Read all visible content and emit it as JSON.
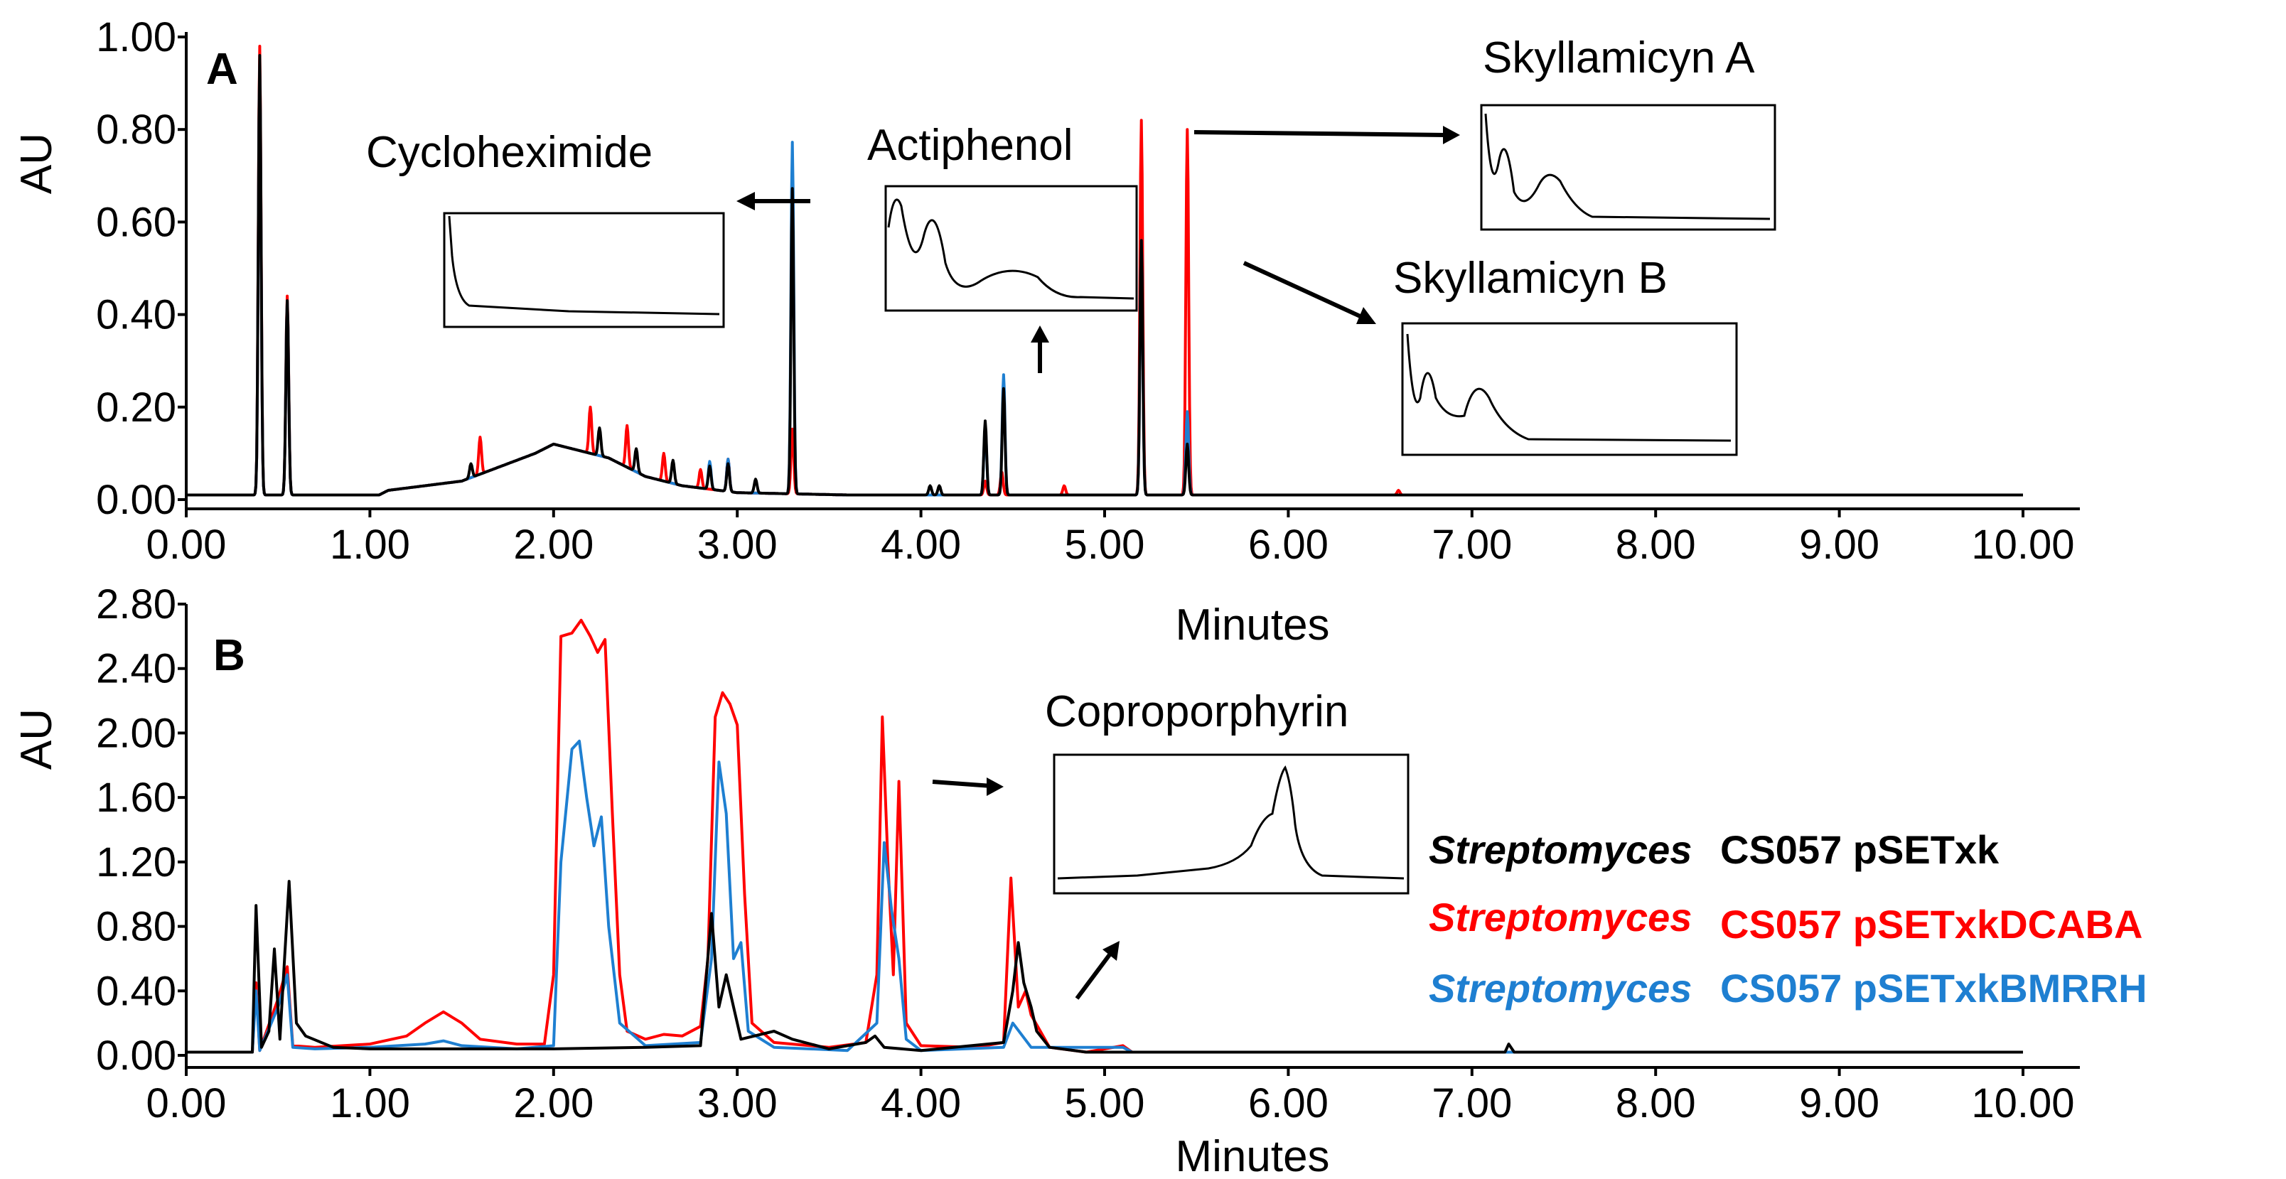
{
  "chart_data": [
    {
      "panel_label": "A",
      "type": "line",
      "xlabel": "Minutes",
      "ylabel": "AU",
      "xlim": [
        0,
        10
      ],
      "ylim": [
        0,
        1.0
      ],
      "x_ticks": [
        "0.00",
        "1.00",
        "2.00",
        "3.00",
        "4.00",
        "5.00",
        "6.00",
        "7.00",
        "8.00",
        "9.00",
        "10.00"
      ],
      "y_ticks": [
        "0.00",
        "0.20",
        "0.40",
        "0.60",
        "0.80",
        "1.00"
      ],
      "series": [
        {
          "name": "Streptomyces CS057 pSETxkDCABA",
          "color": "#ff0000",
          "baseline": [
            [
              0.0,
              0.01
            ],
            [
              1.05,
              0.01
            ],
            [
              1.1,
              0.02
            ],
            [
              1.5,
              0.04
            ],
            [
              1.7,
              0.07
            ],
            [
              1.9,
              0.1
            ],
            [
              2.0,
              0.12
            ],
            [
              2.1,
              0.11
            ],
            [
              2.3,
              0.09
            ],
            [
              2.5,
              0.05
            ],
            [
              2.7,
              0.03
            ],
            [
              3.0,
              0.015
            ],
            [
              3.6,
              0.01
            ],
            [
              10.0,
              0.01
            ]
          ],
          "peaks": [
            [
              0.4,
              0.97
            ],
            [
              0.55,
              0.43
            ],
            [
              1.6,
              0.08
            ],
            [
              2.2,
              0.1
            ],
            [
              2.4,
              0.09
            ],
            [
              2.6,
              0.06
            ],
            [
              2.8,
              0.04
            ],
            [
              2.95,
              0.07
            ],
            [
              3.3,
              0.14
            ],
            [
              4.35,
              0.03
            ],
            [
              4.44,
              0.05
            ],
            [
              4.78,
              0.02
            ],
            [
              5.2,
              0.81
            ],
            [
              5.45,
              0.79
            ],
            [
              6.6,
              0.01
            ]
          ]
        },
        {
          "name": "Streptomyces CS057 pSETxkBMRRH",
          "color": "#1e7fd1",
          "baseline": [
            [
              0.0,
              0.01
            ],
            [
              1.05,
              0.01
            ],
            [
              1.1,
              0.02
            ],
            [
              1.5,
              0.04
            ],
            [
              1.7,
              0.07
            ],
            [
              1.9,
              0.1
            ],
            [
              2.0,
              0.12
            ],
            [
              2.1,
              0.11
            ],
            [
              2.3,
              0.09
            ],
            [
              2.5,
              0.05
            ],
            [
              2.7,
              0.03
            ],
            [
              3.0,
              0.015
            ],
            [
              3.6,
              0.01
            ],
            [
              10.0,
              0.01
            ]
          ],
          "peaks": [
            [
              0.4,
              0.93
            ],
            [
              0.55,
              0.42
            ],
            [
              2.85,
              0.06
            ],
            [
              2.95,
              0.07
            ],
            [
              3.3,
              0.76
            ],
            [
              4.35,
              0.15
            ],
            [
              4.45,
              0.26
            ],
            [
              5.2,
              0.55
            ],
            [
              5.45,
              0.18
            ]
          ]
        },
        {
          "name": "Streptomyces CS057 pSETxk",
          "color": "#000000",
          "baseline": [
            [
              0.0,
              0.01
            ],
            [
              1.05,
              0.01
            ],
            [
              1.1,
              0.02
            ],
            [
              1.5,
              0.04
            ],
            [
              1.7,
              0.07
            ],
            [
              1.9,
              0.1
            ],
            [
              2.0,
              0.12
            ],
            [
              2.1,
              0.11
            ],
            [
              2.3,
              0.09
            ],
            [
              2.5,
              0.05
            ],
            [
              2.7,
              0.03
            ],
            [
              3.0,
              0.015
            ],
            [
              3.6,
              0.01
            ],
            [
              10.0,
              0.01
            ]
          ],
          "peaks": [
            [
              0.4,
              0.95
            ],
            [
              0.55,
              0.42
            ],
            [
              1.55,
              0.03
            ],
            [
              2.25,
              0.06
            ],
            [
              2.45,
              0.05
            ],
            [
              2.65,
              0.05
            ],
            [
              2.85,
              0.05
            ],
            [
              2.95,
              0.06
            ],
            [
              3.1,
              0.03
            ],
            [
              3.3,
              0.66
            ],
            [
              4.05,
              0.02
            ],
            [
              4.1,
              0.02
            ],
            [
              4.35,
              0.16
            ],
            [
              4.45,
              0.23
            ],
            [
              5.2,
              0.55
            ],
            [
              5.45,
              0.11
            ]
          ]
        }
      ],
      "annotations": [
        "Cycloheximide",
        "Actiphenol",
        "Skyllamicyn A",
        "Skyllamicyn B"
      ]
    },
    {
      "panel_label": "B",
      "type": "line",
      "xlabel": "Minutes",
      "ylabel": "AU",
      "xlim": [
        0,
        10
      ],
      "ylim": [
        0,
        2.8
      ],
      "x_ticks": [
        "0.00",
        "1.00",
        "2.00",
        "3.00",
        "4.00",
        "5.00",
        "6.00",
        "7.00",
        "8.00",
        "9.00",
        "10.00"
      ],
      "y_ticks": [
        "0.00",
        "0.40",
        "0.80",
        "1.20",
        "1.60",
        "2.00",
        "2.40",
        "2.80"
      ],
      "series": [
        {
          "name": "Streptomyces CS057 pSETxkDCABA",
          "color": "#ff0000",
          "points": [
            [
              0,
              0.02
            ],
            [
              0.36,
              0.02
            ],
            [
              0.38,
              0.45
            ],
            [
              0.4,
              0.03
            ],
            [
              0.5,
              0.35
            ],
            [
              0.55,
              0.55
            ],
            [
              0.58,
              0.06
            ],
            [
              0.7,
              0.05
            ],
            [
              1.0,
              0.07
            ],
            [
              1.2,
              0.12
            ],
            [
              1.3,
              0.2
            ],
            [
              1.4,
              0.27
            ],
            [
              1.5,
              0.2
            ],
            [
              1.6,
              0.1
            ],
            [
              1.8,
              0.07
            ],
            [
              1.95,
              0.07
            ],
            [
              2.0,
              0.5
            ],
            [
              2.04,
              2.6
            ],
            [
              2.1,
              2.62
            ],
            [
              2.15,
              2.7
            ],
            [
              2.2,
              2.6
            ],
            [
              2.24,
              2.5
            ],
            [
              2.28,
              2.58
            ],
            [
              2.32,
              1.5
            ],
            [
              2.36,
              0.5
            ],
            [
              2.4,
              0.15
            ],
            [
              2.5,
              0.1
            ],
            [
              2.6,
              0.13
            ],
            [
              2.7,
              0.12
            ],
            [
              2.8,
              0.18
            ],
            [
              2.84,
              0.6
            ],
            [
              2.88,
              2.1
            ],
            [
              2.92,
              2.25
            ],
            [
              2.96,
              2.18
            ],
            [
              3.0,
              2.05
            ],
            [
              3.04,
              1.0
            ],
            [
              3.08,
              0.2
            ],
            [
              3.2,
              0.08
            ],
            [
              3.5,
              0.05
            ],
            [
              3.7,
              0.08
            ],
            [
              3.76,
              0.5
            ],
            [
              3.79,
              2.1
            ],
            [
              3.82,
              1.2
            ],
            [
              3.85,
              0.5
            ],
            [
              3.88,
              1.7
            ],
            [
              3.92,
              0.2
            ],
            [
              4.0,
              0.06
            ],
            [
              4.3,
              0.05
            ],
            [
              4.45,
              0.08
            ],
            [
              4.49,
              1.1
            ],
            [
              4.53,
              0.3
            ],
            [
              4.57,
              0.4
            ],
            [
              4.6,
              0.25
            ],
            [
              4.65,
              0.15
            ],
            [
              4.7,
              0.05
            ],
            [
              4.9,
              0.02
            ],
            [
              5.1,
              0.06
            ],
            [
              5.15,
              0.02
            ],
            [
              10,
              0.02
            ]
          ]
        },
        {
          "name": "Streptomyces CS057 pSETxkBMRRH",
          "color": "#1e7fd1",
          "points": [
            [
              0,
              0.02
            ],
            [
              0.36,
              0.02
            ],
            [
              0.38,
              0.4
            ],
            [
              0.4,
              0.03
            ],
            [
              0.5,
              0.3
            ],
            [
              0.55,
              0.5
            ],
            [
              0.58,
              0.05
            ],
            [
              0.7,
              0.04
            ],
            [
              1.0,
              0.05
            ],
            [
              1.3,
              0.07
            ],
            [
              1.4,
              0.09
            ],
            [
              1.5,
              0.06
            ],
            [
              1.8,
              0.04
            ],
            [
              2.0,
              0.06
            ],
            [
              2.04,
              1.2
            ],
            [
              2.1,
              1.9
            ],
            [
              2.14,
              1.95
            ],
            [
              2.18,
              1.6
            ],
            [
              2.22,
              1.3
            ],
            [
              2.26,
              1.48
            ],
            [
              2.3,
              0.8
            ],
            [
              2.36,
              0.2
            ],
            [
              2.5,
              0.06
            ],
            [
              2.8,
              0.08
            ],
            [
              2.86,
              0.6
            ],
            [
              2.9,
              1.82
            ],
            [
              2.94,
              1.5
            ],
            [
              2.98,
              0.6
            ],
            [
              3.02,
              0.7
            ],
            [
              3.06,
              0.15
            ],
            [
              3.2,
              0.05
            ],
            [
              3.6,
              0.03
            ],
            [
              3.76,
              0.2
            ],
            [
              3.8,
              1.32
            ],
            [
              3.84,
              0.9
            ],
            [
              3.88,
              0.6
            ],
            [
              3.92,
              0.1
            ],
            [
              4.0,
              0.03
            ],
            [
              4.45,
              0.05
            ],
            [
              4.5,
              0.2
            ],
            [
              4.6,
              0.05
            ],
            [
              5.1,
              0.05
            ],
            [
              5.15,
              0.02
            ],
            [
              10,
              0.02
            ]
          ]
        },
        {
          "name": "Streptomyces CS057 pSETxk",
          "color": "#000000",
          "points": [
            [
              0,
              0.02
            ],
            [
              0.36,
              0.02
            ],
            [
              0.38,
              0.93
            ],
            [
              0.41,
              0.05
            ],
            [
              0.45,
              0.15
            ],
            [
              0.48,
              0.66
            ],
            [
              0.51,
              0.1
            ],
            [
              0.53,
              0.5
            ],
            [
              0.56,
              1.08
            ],
            [
              0.6,
              0.2
            ],
            [
              0.65,
              0.12
            ],
            [
              0.8,
              0.05
            ],
            [
              1.0,
              0.04
            ],
            [
              2.0,
              0.04
            ],
            [
              2.5,
              0.05
            ],
            [
              2.8,
              0.06
            ],
            [
              2.86,
              0.88
            ],
            [
              2.9,
              0.3
            ],
            [
              2.94,
              0.5
            ],
            [
              2.98,
              0.3
            ],
            [
              3.02,
              0.1
            ],
            [
              3.2,
              0.15
            ],
            [
              3.3,
              0.1
            ],
            [
              3.5,
              0.04
            ],
            [
              3.7,
              0.08
            ],
            [
              3.75,
              0.12
            ],
            [
              3.8,
              0.05
            ],
            [
              4.0,
              0.03
            ],
            [
              4.45,
              0.08
            ],
            [
              4.5,
              0.4
            ],
            [
              4.53,
              0.7
            ],
            [
              4.56,
              0.45
            ],
            [
              4.6,
              0.3
            ],
            [
              4.63,
              0.15
            ],
            [
              4.7,
              0.05
            ],
            [
              4.9,
              0.02
            ],
            [
              7.18,
              0.02
            ],
            [
              7.2,
              0.07
            ],
            [
              7.23,
              0.02
            ],
            [
              10,
              0.02
            ]
          ]
        }
      ],
      "annotations": [
        "Coproporphyrin"
      ]
    }
  ],
  "legend": [
    {
      "species": "Streptomyces",
      "strain": "CS057 pSETxk",
      "color": "#000000"
    },
    {
      "species": "Streptomyces",
      "strain": "CS057 pSETxkDCABA",
      "color": "#ff0000"
    },
    {
      "species": "Streptomyces",
      "strain": "CS057 pSETxkBMRRH",
      "color": "#1e7fd1"
    }
  ]
}
